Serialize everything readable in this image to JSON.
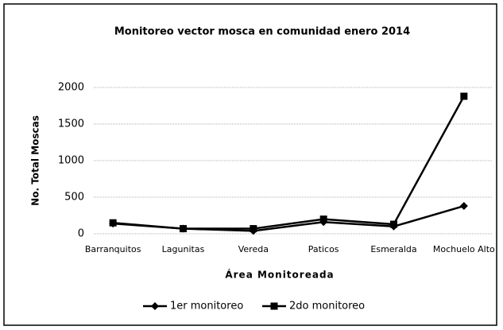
{
  "chart_data": {
    "type": "line",
    "title": "Monitoreo vector mosca en comunidad enero 2014",
    "x_label": "Área Monitoreada",
    "y_label": "No. Total Moscas",
    "categories": [
      "Barranquitos",
      "Lagunitas",
      "Vereda",
      "Paticos",
      "Esmeralda",
      "Mochuelo Alto"
    ],
    "series": [
      {
        "name": "1er monitoreo",
        "color": "#000000",
        "marker": "diamond",
        "values": [
          140,
          70,
          40,
          160,
          100,
          380
        ]
      },
      {
        "name": "2do monitoreo",
        "color": "#000000",
        "marker": "square",
        "values": [
          150,
          70,
          70,
          200,
          130,
          1880
        ]
      }
    ],
    "ylim": [
      0,
      2000
    ],
    "yticks": [
      0,
      500,
      1000,
      1500,
      2000
    ],
    "grid": true,
    "legend": "bottom"
  }
}
